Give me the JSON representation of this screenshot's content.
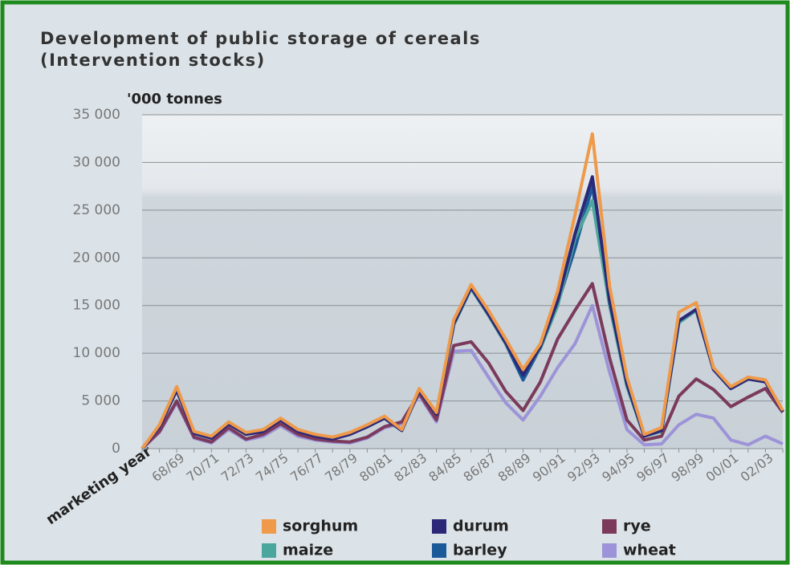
{
  "chart_data": {
    "type": "line",
    "title": "Development of public storage of cereals",
    "subtitle": "(Intervention stocks)",
    "y_label": "'000 tonnes",
    "x_label": "marketing year",
    "categories": [
      null,
      null,
      "68/69",
      null,
      "70/71",
      null,
      "72/73",
      null,
      "74/75",
      null,
      "76/77",
      null,
      "78/79",
      null,
      "80/81",
      null,
      "82/83",
      null,
      "84/85",
      null,
      "86/87",
      null,
      "88/89",
      null,
      "90/91",
      null,
      "92/93",
      null,
      "94/95",
      null,
      "96/97",
      null,
      "98/99",
      null,
      "00/01",
      null,
      "02/03",
      null
    ],
    "ylim": [
      0,
      35000
    ],
    "yticks": [
      0,
      {
        "value": 5000,
        "label": "5 000"
      },
      {
        "value": 10000,
        "label": "10 000"
      },
      {
        "value": 15000,
        "label": "15 000"
      },
      {
        "value": 20000,
        "label": "20 000"
      },
      {
        "value": 25000,
        "label": "25 000"
      },
      {
        "value": 30000,
        "label": "30 000"
      },
      {
        "value": 35000,
        "label": "35 000"
      }
    ],
    "grid": true,
    "series": [
      {
        "name": "sorghum",
        "color": "#ef9a4a",
        "values": [
          0,
          2500,
          6500,
          1800,
          1300,
          2800,
          1700,
          2000,
          3200,
          2000,
          1500,
          1200,
          1700,
          2500,
          3400,
          2000,
          6300,
          3800,
          13500,
          17200,
          14500,
          11500,
          8300,
          11000,
          16500,
          24500,
          33000,
          17000,
          7500,
          1500,
          2200,
          14300,
          15300,
          8500,
          6500,
          7500,
          7200,
          4000
        ]
      },
      {
        "name": "durum",
        "color": "#2b2878",
        "values": [
          0,
          2300,
          6200,
          1600,
          1100,
          2600,
          1500,
          1800,
          3000,
          1800,
          1300,
          1000,
          1500,
          2300,
          3200,
          1900,
          6100,
          3600,
          13100,
          16900,
          14100,
          11100,
          7700,
          10700,
          15500,
          22500,
          28500,
          15500,
          6800,
          1300,
          1900,
          13400,
          14600,
          8300,
          6300,
          7300,
          7000,
          3900
        ]
      },
      {
        "name": "rye",
        "color": "#7b3a5c",
        "values": [
          0,
          1800,
          5000,
          1200,
          700,
          2200,
          1000,
          1500,
          2600,
          1500,
          1000,
          800,
          700,
          1200,
          2300,
          2800,
          5800,
          3000,
          10800,
          11200,
          9000,
          6000,
          4000,
          7000,
          11500,
          14500,
          17300,
          9500,
          3000,
          900,
          1300,
          5500,
          7300,
          6200,
          4400,
          5400,
          6300,
          3800
        ]
      },
      {
        "name": "maize",
        "color": "#4ba69e",
        "values": [
          0,
          2400,
          6300,
          1700,
          1200,
          2700,
          1600,
          1900,
          3100,
          1900,
          1400,
          1100,
          1600,
          2400,
          3300,
          1900,
          6200,
          3700,
          13000,
          16800,
          14000,
          11000,
          7800,
          10500,
          15000,
          22000,
          26000,
          15000,
          6500,
          1300,
          1800,
          13200,
          14500,
          8300,
          6300,
          7300,
          7000,
          3900
        ]
      },
      {
        "name": "barley",
        "color": "#1b5a98",
        "values": [
          0,
          2300,
          6100,
          1600,
          1100,
          2600,
          1500,
          1800,
          3000,
          1800,
          1300,
          1000,
          1500,
          2300,
          3200,
          1900,
          6100,
          3600,
          13000,
          16800,
          14000,
          11000,
          7200,
          10600,
          15200,
          21000,
          27500,
          15300,
          6700,
          1300,
          1900,
          13300,
          14500,
          8300,
          6300,
          7300,
          7000,
          3900
        ]
      },
      {
        "name": "wheat",
        "color": "#9c93d8",
        "values": [
          0,
          1700,
          4800,
          1100,
          600,
          2000,
          900,
          1300,
          2400,
          1300,
          900,
          700,
          600,
          1100,
          2200,
          2600,
          5600,
          2800,
          10200,
          10300,
          7500,
          4800,
          3000,
          5500,
          8500,
          11000,
          15000,
          8000,
          2000,
          400,
          500,
          2500,
          3600,
          3200,
          900,
          400,
          1300,
          500
        ]
      }
    ]
  }
}
